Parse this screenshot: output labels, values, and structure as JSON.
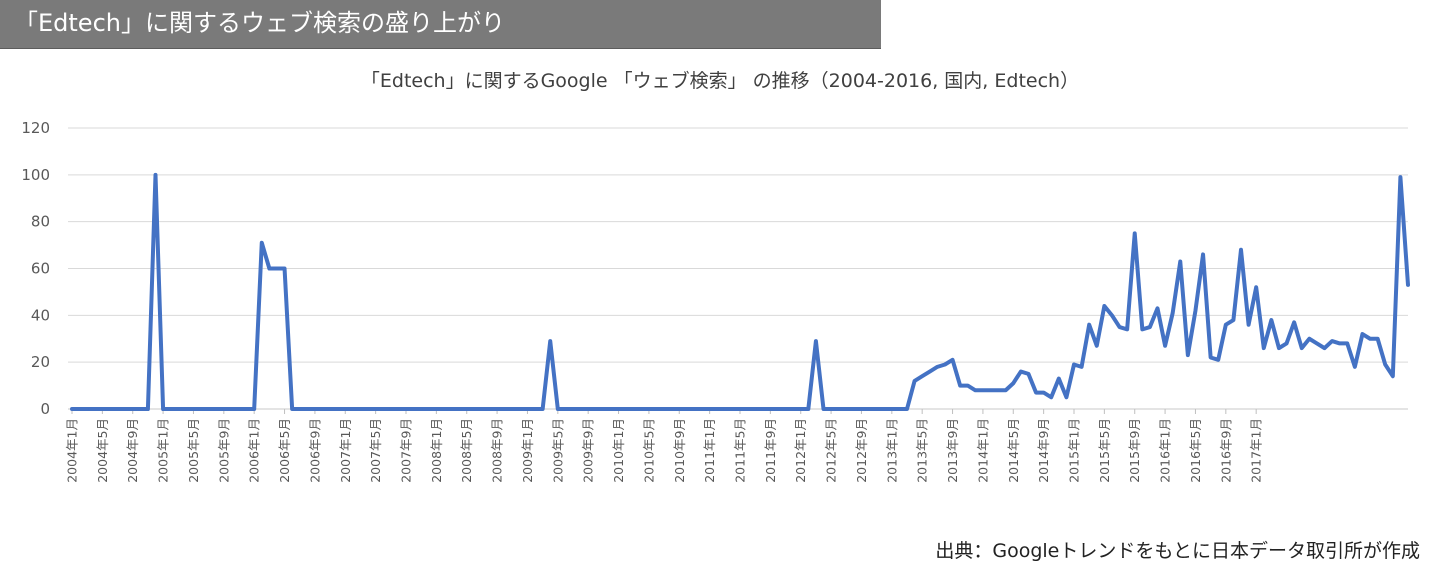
{
  "banner": {
    "title": "「Edtech」に関するウェブ検索の盛り上がり"
  },
  "footer": {
    "source": "出典：Googleトレンドをもとに日本データ取引所が作成"
  },
  "chart_data": {
    "type": "line",
    "title": "「Edtech」に関するGoogle 「ウェブ検索」 の推移（2004-2016, 国内, Edtech）",
    "xlabel": "",
    "ylabel": "",
    "ylim": [
      0,
      120
    ],
    "yticks": [
      0,
      20,
      40,
      60,
      80,
      100,
      120
    ],
    "grid": true,
    "line_color": "#4472C4",
    "x_tick_labels": [
      "2004年1月",
      "2004年5月",
      "2004年9月",
      "2005年1月",
      "2005年5月",
      "2005年9月",
      "2006年1月",
      "2006年5月",
      "2006年9月",
      "2007年1月",
      "2007年5月",
      "2007年9月",
      "2008年1月",
      "2008年5月",
      "2008年9月",
      "2009年1月",
      "2009年5月",
      "2009年9月",
      "2010年1月",
      "2010年5月",
      "2010年9月",
      "2011年1月",
      "2011年5月",
      "2011年9月",
      "2012年1月",
      "2012年5月",
      "2012年9月",
      "2013年1月",
      "2013年5月",
      "2013年9月",
      "2014年1月",
      "2014年5月",
      "2014年9月",
      "2015年1月",
      "2015年5月",
      "2015年9月",
      "2016年1月",
      "2016年5月",
      "2016年9月",
      "2017年1月"
    ],
    "series": [
      {
        "values": [
          0,
          0,
          0,
          0,
          0,
          0,
          0,
          0,
          0,
          0,
          0,
          100,
          0,
          0,
          0,
          0,
          0,
          0,
          0,
          0,
          0,
          0,
          0,
          0,
          0,
          71,
          60,
          60,
          60,
          0,
          0,
          0,
          0,
          0,
          0,
          0,
          0,
          0,
          0,
          0,
          0,
          0,
          0,
          0,
          0,
          0,
          0,
          0,
          0,
          0,
          0,
          0,
          0,
          0,
          0,
          0,
          0,
          0,
          0,
          0,
          0,
          0,
          0,
          29,
          0,
          0,
          0,
          0,
          0,
          0,
          0,
          0,
          0,
          0,
          0,
          0,
          0,
          0,
          0,
          0,
          0,
          0,
          0,
          0,
          0,
          0,
          0,
          0,
          0,
          0,
          0,
          0,
          0,
          0,
          0,
          0,
          0,
          0,
          29,
          0,
          0,
          0,
          0,
          0,
          0,
          0,
          0,
          0,
          0,
          0,
          0,
          12,
          14,
          16,
          18,
          19,
          21,
          10,
          10,
          8,
          8,
          8,
          8,
          8,
          11,
          16,
          15,
          7,
          7,
          5,
          13,
          5,
          19,
          18,
          36,
          27,
          44,
          40,
          35,
          34,
          75,
          34,
          35,
          43,
          27,
          41,
          63,
          23,
          42,
          66,
          22,
          21,
          36,
          38,
          68,
          36,
          52,
          26,
          38,
          26,
          28,
          37,
          26,
          30,
          28,
          26,
          29,
          28,
          28,
          18,
          32,
          30,
          30,
          19,
          14,
          99,
          53
        ]
      }
    ]
  }
}
